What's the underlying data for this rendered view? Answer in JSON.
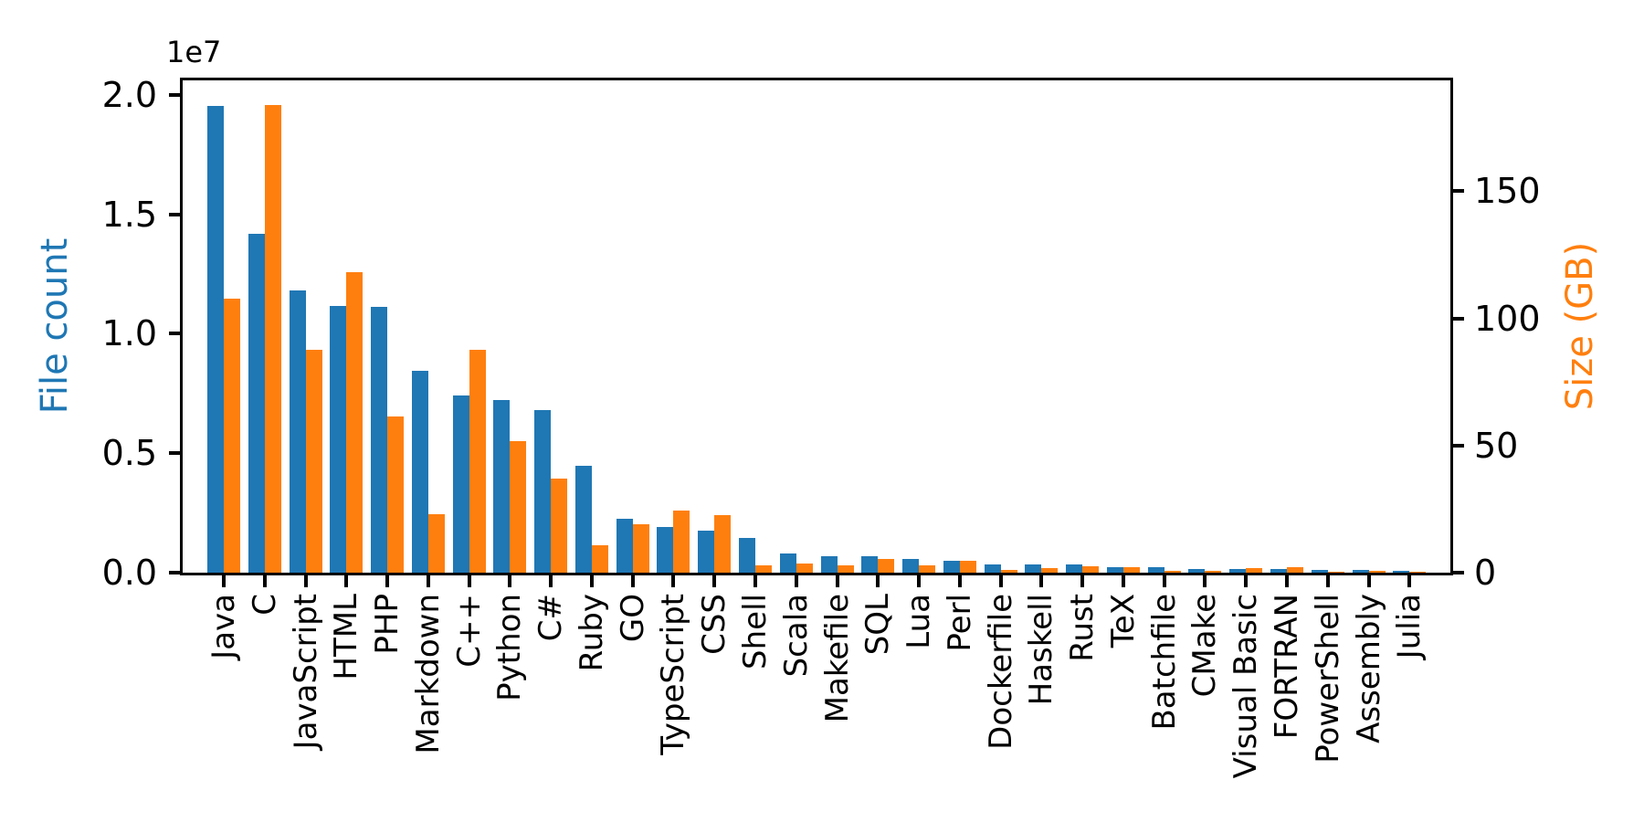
{
  "chart_data": {
    "type": "bar",
    "title": "",
    "grid": false,
    "legend": "none",
    "categories": [
      "Java",
      "C",
      "JavaScript",
      "HTML",
      "PHP",
      "Markdown",
      "C++",
      "Python",
      "C#",
      "Ruby",
      "GO",
      "TypeScript",
      "CSS",
      "Shell",
      "Scala",
      "Makefile",
      "SQL",
      "Lua",
      "Perl",
      "Dockerfile",
      "Haskell",
      "Rust",
      "TeX",
      "Batchfile",
      "CMake",
      "Visual Basic",
      "FORTRAN",
      "PowerShell",
      "Assembly",
      "Julia"
    ],
    "series": [
      {
        "name": "File count",
        "axis": "left",
        "color": "#1f77b4",
        "values": [
          19550000,
          14170000,
          11820000,
          11180000,
          11140000,
          8460000,
          7410000,
          7210000,
          6810000,
          4470000,
          2270000,
          1910000,
          1750000,
          1440000,
          810000,
          700000,
          680000,
          585000,
          497000,
          360000,
          345000,
          330000,
          240000,
          225000,
          150000,
          140000,
          135000,
          125000,
          100000,
          65000
        ]
      },
      {
        "name": "Size (GB)",
        "axis": "right",
        "color": "#ff7f0e",
        "values": [
          107.7,
          183.9,
          87.7,
          118.0,
          61.3,
          23.1,
          87.6,
          51.7,
          36.9,
          10.7,
          19.1,
          24.5,
          22.8,
          3.0,
          3.7,
          3.0,
          5.5,
          2.8,
          4.8,
          1.0,
          1.9,
          2.4,
          2.3,
          0.7,
          0.7,
          1.9,
          2.2,
          0.4,
          0.6,
          0.3
        ]
      }
    ],
    "ylabel_left": "File count",
    "ylabel_right": "Size (GB)",
    "left_axis_offset_label": "1e7",
    "left_ticks": {
      "values": [
        0,
        5000000,
        10000000,
        15000000,
        20000000
      ],
      "labels": [
        "0.0",
        "0.5",
        "1.0",
        "1.5",
        "2.0"
      ]
    },
    "right_ticks": {
      "values": [
        0,
        50,
        100,
        150
      ],
      "labels": [
        "0",
        "50",
        "100",
        "150"
      ]
    },
    "left_ylim": [
      0,
      20610000
    ],
    "right_ylim": [
      0,
      193.6
    ],
    "xlabel": ""
  },
  "colors": {
    "file_count": "#1f77b4",
    "size_gb": "#ff7f0e",
    "axis": "#000000",
    "background": "#ffffff"
  }
}
